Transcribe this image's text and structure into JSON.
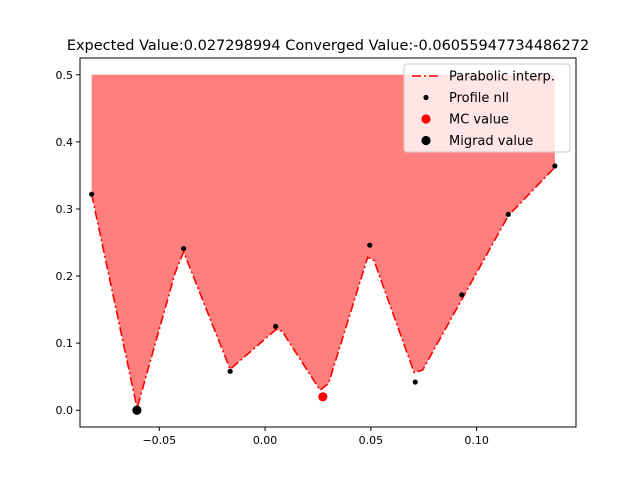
{
  "chart_data": {
    "type": "line",
    "title": "Expected Value:0.027298994 Converged Value:-0.06055947734486272",
    "xlabel": "",
    "ylabel": "",
    "xlim": [
      -0.0875,
      0.147
    ],
    "ylim": [
      -0.025,
      0.525
    ],
    "x_ticks": [
      -0.05,
      0.0,
      0.05,
      0.1
    ],
    "x_tick_labels": [
      "−0.05",
      "0.00",
      "0.05",
      "0.10"
    ],
    "y_ticks": [
      0.0,
      0.1,
      0.2,
      0.3,
      0.4,
      0.5
    ],
    "y_tick_labels": [
      "0.0",
      "0.1",
      "0.2",
      "0.3",
      "0.4",
      "0.5"
    ],
    "grid": false,
    "legend_position": "top-right",
    "series": [
      {
        "name": "Parabolic interp.",
        "style": "dash-dot",
        "color": "#ff0000",
        "x": [
          -0.082,
          -0.0605,
          -0.0425,
          -0.0385,
          -0.0165,
          0.005,
          0.008,
          0.026,
          0.03,
          0.0485,
          0.0515,
          0.0705,
          0.0745,
          0.115,
          0.137
        ],
        "y": [
          0.322,
          0.003,
          0.205,
          0.236,
          0.061,
          0.12,
          0.118,
          0.03,
          0.04,
          0.228,
          0.223,
          0.056,
          0.06,
          0.29,
          0.362
        ]
      },
      {
        "name": "Profile nll",
        "style": "points",
        "color": "#000000",
        "x": [
          -0.082,
          -0.0385,
          -0.0165,
          0.005,
          0.0495,
          0.071,
          0.093,
          0.115,
          0.137
        ],
        "y": [
          0.322,
          0.241,
          0.058,
          0.125,
          0.246,
          0.042,
          0.172,
          0.292,
          0.364
        ]
      },
      {
        "name": "MC value",
        "style": "marker",
        "color": "#ff0000",
        "x": [
          0.0273
        ],
        "y": [
          0.02
        ]
      },
      {
        "name": "Migrad value",
        "style": "marker",
        "color": "#000000",
        "x": [
          -0.0606
        ],
        "y": [
          0.0
        ]
      }
    ],
    "fill": {
      "color": "#ff0000",
      "opacity": 0.5,
      "upper": 0.5
    }
  }
}
